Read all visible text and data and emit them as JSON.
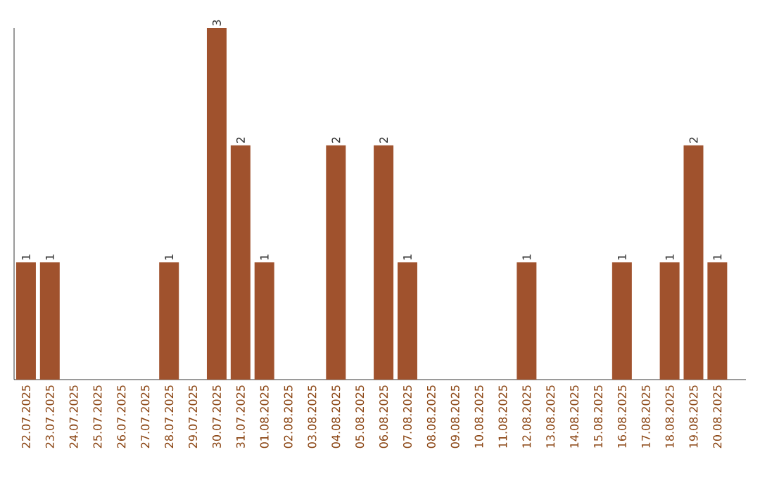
{
  "chart_data": {
    "type": "bar",
    "categories": [
      "22.07.2025",
      "23.07.2025",
      "24.07.2025",
      "25.07.2025",
      "26.07.2025",
      "27.07.2025",
      "28.07.2025",
      "29.07.2025",
      "30.07.2025",
      "31.07.2025",
      "01.08.2025",
      "02.08.2025",
      "03.08.2025",
      "04.08.2025",
      "05.08.2025",
      "06.08.2025",
      "07.08.2025",
      "08.08.2025",
      "09.08.2025",
      "10.08.2025",
      "11.08.2025",
      "12.08.2025",
      "13.08.2025",
      "14.08.2025",
      "15.08.2025",
      "16.08.2025",
      "17.08.2025",
      "18.08.2025",
      "19.08.2025",
      "20.08.2025"
    ],
    "values": [
      1,
      1,
      0,
      0,
      0,
      0,
      1,
      0,
      3,
      2,
      1,
      0,
      0,
      2,
      0,
      2,
      1,
      0,
      0,
      0,
      0,
      1,
      0,
      0,
      0,
      1,
      0,
      1,
      2,
      1
    ],
    "value_labels": [
      "1",
      "1",
      null,
      null,
      null,
      null,
      "1",
      null,
      "3",
      "2",
      "1",
      null,
      null,
      "2",
      null,
      "2",
      "1",
      null,
      null,
      null,
      null,
      "1",
      null,
      null,
      null,
      "1",
      null,
      "1",
      "2",
      "1"
    ],
    "color": "#a0522d",
    "ylim": [
      0,
      3
    ],
    "tick_labels": "x"
  }
}
